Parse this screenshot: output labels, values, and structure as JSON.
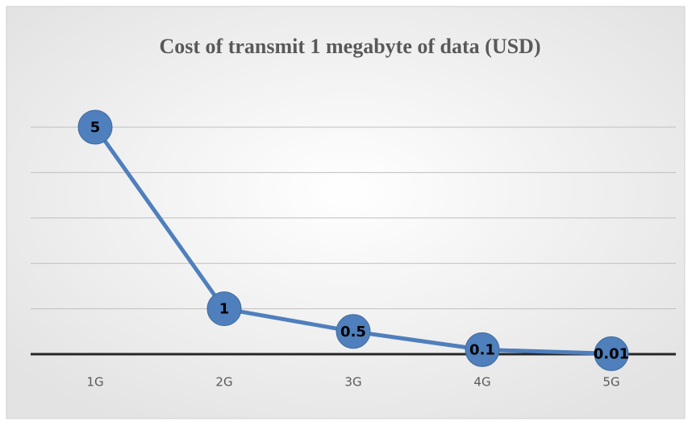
{
  "chart_data": {
    "type": "line",
    "title": "Cost of transmit 1 megabyte of data (USD)",
    "categories": [
      "1G",
      "2G",
      "3G",
      "4G",
      "5G"
    ],
    "values": [
      5,
      1,
      0.5,
      0.1,
      0.01
    ],
    "color": "#4f7fbc",
    "ylim": [
      0,
      5
    ],
    "yticks": [
      0,
      1,
      2,
      3,
      4,
      5
    ],
    "grid": true
  }
}
